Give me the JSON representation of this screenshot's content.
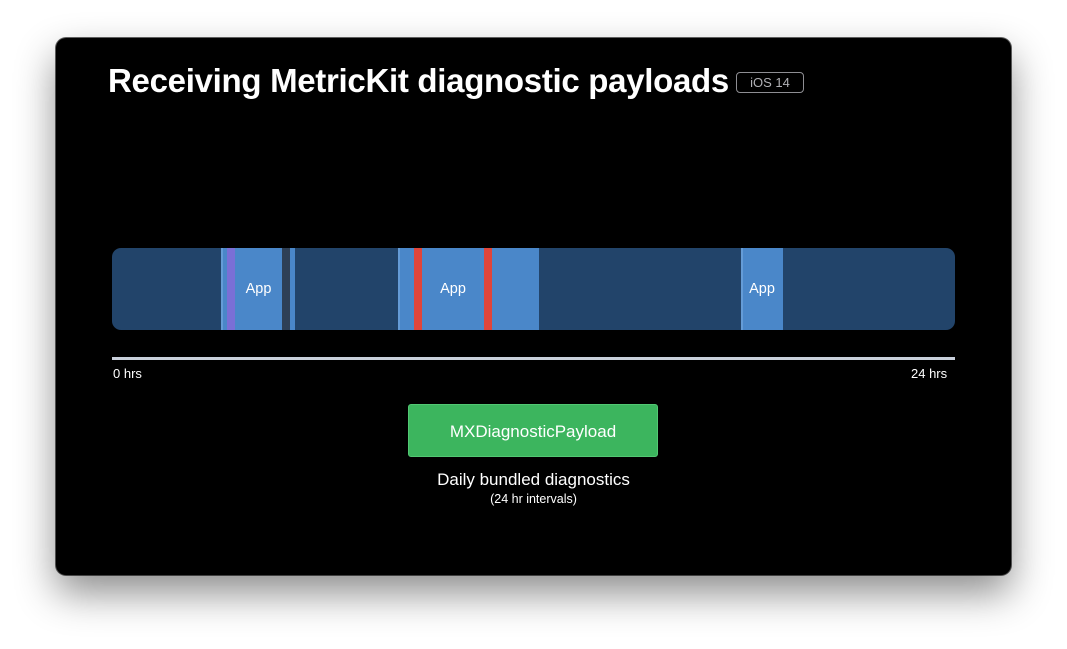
{
  "slide": {
    "title": "Receiving MetricKit diagnostic payloads",
    "badge": "iOS 14"
  },
  "timeline": {
    "session_label": "App",
    "start_label": "0 hrs",
    "end_label": "24 hrs",
    "colors": {
      "track": "#22446a",
      "session": "#4a87c9",
      "purple_marker": "#7a6fd6",
      "dark_marker": "#2e3f55",
      "red_marker": "#e0453a"
    }
  },
  "payload": {
    "label": "MXDiagnosticPayload",
    "caption": "Daily bundled diagnostics",
    "subcaption": "(24 hr intervals)",
    "color": "#3cb55e"
  }
}
